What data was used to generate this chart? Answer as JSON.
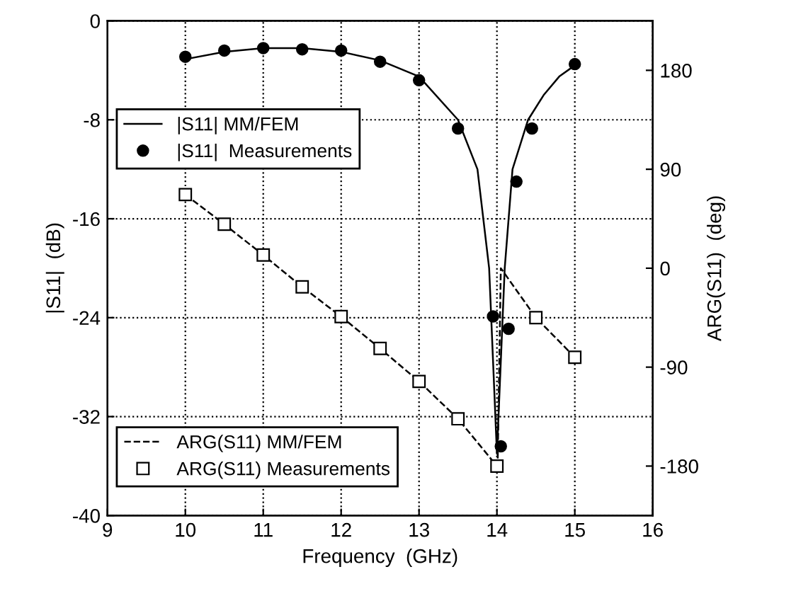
{
  "chart_data": {
    "type": "line",
    "xlabel": "Frequency  (GHz)",
    "ylabel": "|S11|  (dB)",
    "y2label": "ARG(S11)  (deg)",
    "xlim": [
      9,
      16
    ],
    "xticks": [
      9,
      10,
      11,
      12,
      13,
      14,
      15,
      16
    ],
    "ylim": [
      -40,
      0
    ],
    "yticks": [
      -40,
      -32,
      -24,
      -16,
      -8,
      0
    ],
    "y2lim": [
      -225,
      225
    ],
    "y2ticks": [
      -180,
      -90,
      0,
      90,
      180
    ],
    "grid": true,
    "legend": "left",
    "series": [
      {
        "name": "|S11| MM/FEM",
        "color": "#000000",
        "line_style": "solid",
        "marker": "none",
        "x": [
          10,
          10.5,
          11,
          11.5,
          12,
          12.5,
          13,
          13.5,
          13.75,
          13.9,
          14.0,
          14.1,
          14.2,
          14.4,
          14.6,
          14.8,
          15
        ],
        "values": [
          -3.1,
          -2.5,
          -2.2,
          -2.2,
          -2.5,
          -3.2,
          -4.5,
          -8,
          -12,
          -20,
          -35,
          -20,
          -12,
          -8,
          -6,
          -4.5,
          -3.6
        ]
      },
      {
        "name": "|S11|  Measurements",
        "type": "scatter",
        "color": "#000000",
        "marker": "circle",
        "x": [
          10,
          10.5,
          11,
          11.5,
          12,
          12.5,
          13,
          13.5,
          13.95,
          14.05,
          14.15,
          14.25,
          14.45,
          15
        ],
        "values": [
          -2.9,
          -2.4,
          -2.2,
          -2.3,
          -2.4,
          -3.3,
          -4.8,
          -8.7,
          -23.9,
          -34.4,
          -24.9,
          -13,
          -8.7,
          -3.5
        ]
      },
      {
        "name": "ARG(S11) MM/FEM",
        "axis": "y2",
        "color": "#000000",
        "line_style": "dashed",
        "marker": "none",
        "x": [
          10,
          10.5,
          11,
          11.5,
          12,
          12.5,
          13,
          13.5,
          14,
          14.01,
          14.05,
          14.5,
          15
        ],
        "values": [
          67,
          40,
          12,
          -17,
          -44,
          -73,
          -103,
          -137,
          -180,
          -175,
          0,
          -45,
          -81
        ]
      },
      {
        "name": "ARG(S11) Measurements",
        "type": "scatter",
        "axis": "y2",
        "color": "#000000",
        "marker": "square",
        "x": [
          10,
          10.5,
          11,
          11.5,
          12,
          12.5,
          13,
          13.5,
          14,
          14.5,
          15
        ],
        "values": [
          67,
          40,
          12,
          -17,
          -44,
          -73,
          -103,
          -137,
          -180,
          -45,
          -81
        ]
      }
    ]
  }
}
